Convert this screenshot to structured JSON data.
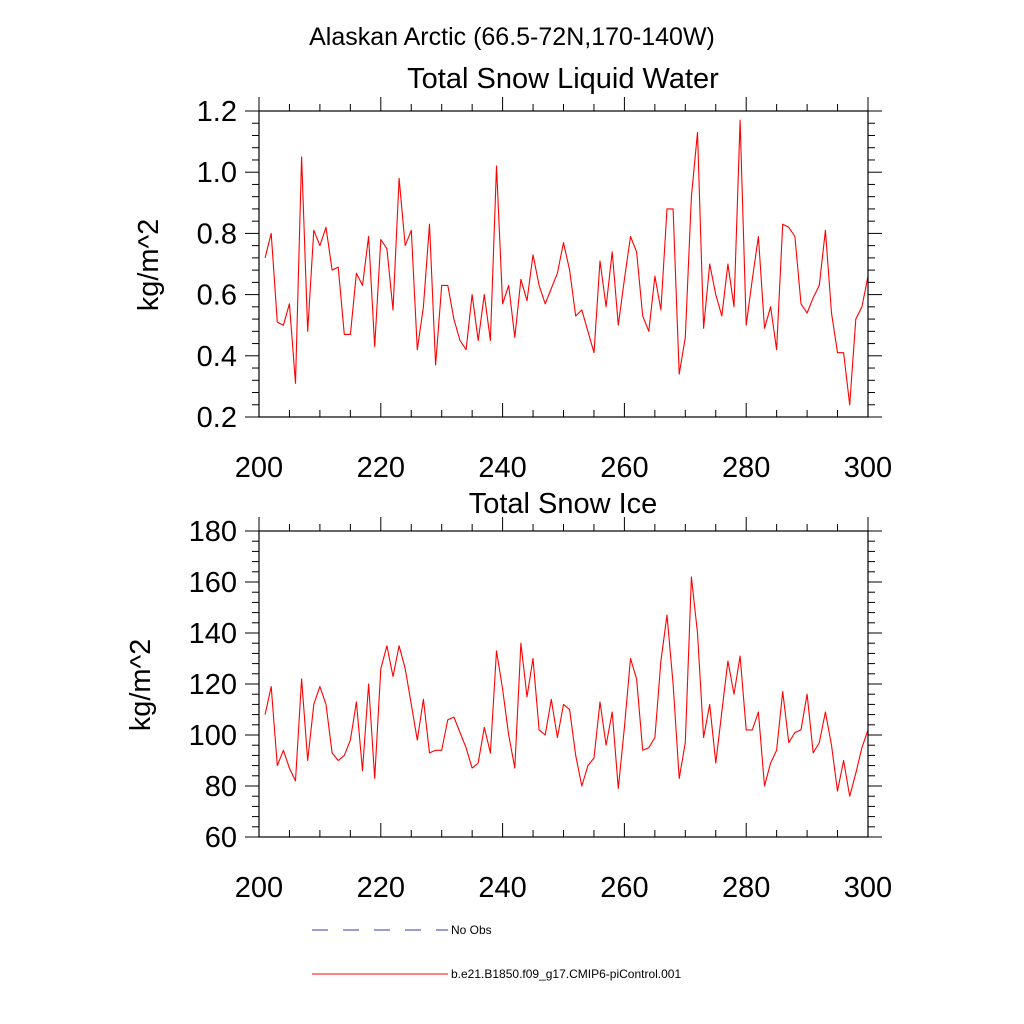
{
  "figure_title": "Alaskan Arctic (66.5-72N,170-140W)",
  "legend": {
    "entries": [
      {
        "label": "No Obs",
        "color": "#3a3aa8",
        "style": "dashed"
      },
      {
        "label": "b.e21.B1850.f09_g17.CMIP6-piControl.001",
        "color": "#ff0000",
        "style": "solid"
      }
    ]
  },
  "chart_data": [
    {
      "type": "line",
      "title": "Total Snow Liquid Water",
      "xlabel": "",
      "ylabel": "kg/m^2",
      "xlim": [
        200,
        300
      ],
      "ylim": [
        0.2,
        1.2
      ],
      "xticks": [
        "200",
        "220",
        "240",
        "260",
        "280",
        "300"
      ],
      "yticks": [
        "0.2",
        "0.4",
        "0.6",
        "0.8",
        "1.0",
        "1.2"
      ],
      "series": [
        {
          "name": "b.e21.B1850.f09_g17.CMIP6-piControl.001",
          "color": "#ff0000",
          "x": [
            201,
            202,
            203,
            204,
            205,
            206,
            207,
            208,
            209,
            210,
            211,
            212,
            213,
            214,
            215,
            216,
            217,
            218,
            219,
            220,
            221,
            222,
            223,
            224,
            225,
            226,
            227,
            228,
            229,
            230,
            231,
            232,
            233,
            234,
            235,
            236,
            237,
            238,
            239,
            240,
            241,
            242,
            243,
            244,
            245,
            246,
            247,
            248,
            249,
            250,
            251,
            252,
            253,
            254,
            255,
            256,
            257,
            258,
            259,
            260,
            261,
            262,
            263,
            264,
            265,
            266,
            267,
            268,
            269,
            270,
            271,
            272,
            273,
            274,
            275,
            276,
            277,
            278,
            279,
            280,
            281,
            282,
            283,
            284,
            285,
            286,
            287,
            288,
            289,
            290,
            291,
            292,
            293,
            294,
            295,
            296,
            297,
            298,
            299,
            300
          ],
          "values": [
            0.72,
            0.8,
            0.51,
            0.5,
            0.57,
            0.31,
            1.05,
            0.48,
            0.81,
            0.76,
            0.82,
            0.68,
            0.69,
            0.47,
            0.47,
            0.67,
            0.63,
            0.79,
            0.43,
            0.78,
            0.75,
            0.55,
            0.98,
            0.76,
            0.81,
            0.42,
            0.56,
            0.83,
            0.37,
            0.63,
            0.63,
            0.52,
            0.45,
            0.42,
            0.6,
            0.45,
            0.6,
            0.45,
            1.02,
            0.57,
            0.63,
            0.46,
            0.65,
            0.58,
            0.73,
            0.63,
            0.57,
            0.62,
            0.67,
            0.77,
            0.68,
            0.53,
            0.55,
            0.48,
            0.41,
            0.71,
            0.56,
            0.74,
            0.5,
            0.65,
            0.79,
            0.74,
            0.53,
            0.48,
            0.66,
            0.55,
            0.88,
            0.88,
            0.34,
            0.46,
            0.92,
            1.13,
            0.49,
            0.7,
            0.6,
            0.53,
            0.7,
            0.56,
            1.17,
            0.5,
            0.65,
            0.79,
            0.49,
            0.56,
            0.42,
            0.83,
            0.82,
            0.79,
            0.57,
            0.54,
            0.59,
            0.63,
            0.81,
            0.54,
            0.41,
            0.41,
            0.24,
            0.52,
            0.56,
            0.66
          ]
        }
      ]
    },
    {
      "type": "line",
      "title": "Total Snow Ice",
      "xlabel": "",
      "ylabel": "kg/m^2",
      "xlim": [
        200,
        300
      ],
      "ylim": [
        60,
        180
      ],
      "xticks": [
        "200",
        "220",
        "240",
        "260",
        "280",
        "300"
      ],
      "yticks": [
        "60",
        "80",
        "100",
        "120",
        "140",
        "160",
        "180"
      ],
      "series": [
        {
          "name": "b.e21.B1850.f09_g17.CMIP6-piControl.001",
          "color": "#ff0000",
          "x": [
            201,
            202,
            203,
            204,
            205,
            206,
            207,
            208,
            209,
            210,
            211,
            212,
            213,
            214,
            215,
            216,
            217,
            218,
            219,
            220,
            221,
            222,
            223,
            224,
            225,
            226,
            227,
            228,
            229,
            230,
            231,
            232,
            233,
            234,
            235,
            236,
            237,
            238,
            239,
            240,
            241,
            242,
            243,
            244,
            245,
            246,
            247,
            248,
            249,
            250,
            251,
            252,
            253,
            254,
            255,
            256,
            257,
            258,
            259,
            260,
            261,
            262,
            263,
            264,
            265,
            266,
            267,
            268,
            269,
            270,
            271,
            272,
            273,
            274,
            275,
            276,
            277,
            278,
            279,
            280,
            281,
            282,
            283,
            284,
            285,
            286,
            287,
            288,
            289,
            290,
            291,
            292,
            293,
            294,
            295,
            296,
            297,
            298,
            299,
            300
          ],
          "values": [
            108,
            119,
            88,
            94,
            87,
            82,
            122,
            90,
            112,
            119,
            112,
            93,
            90,
            92,
            98,
            113,
            86,
            120,
            83,
            126,
            135,
            123,
            135,
            126,
            112,
            98,
            114,
            93,
            94,
            94,
            106,
            107,
            101,
            95,
            87,
            89,
            103,
            93,
            133,
            118,
            100,
            87,
            136,
            115,
            130,
            102,
            100,
            114,
            99,
            112,
            110,
            92,
            80,
            88,
            91,
            113,
            96,
            109,
            79,
            103,
            130,
            122,
            94,
            95,
            99,
            129,
            147,
            120,
            83,
            97,
            162,
            140,
            99,
            112,
            89,
            109,
            129,
            116,
            131,
            102,
            102,
            109,
            80,
            89,
            94,
            117,
            97,
            101,
            102,
            116,
            93,
            97,
            109,
            96,
            78,
            90,
            76,
            85,
            95,
            102
          ]
        }
      ]
    }
  ]
}
